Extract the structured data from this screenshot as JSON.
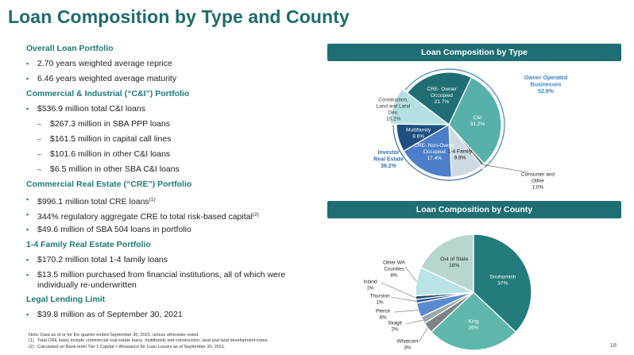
{
  "page": {
    "title": "Loan Composition by Type and County",
    "page_number": "18"
  },
  "left": {
    "overall": {
      "heading": "Overall Loan Portfolio",
      "items": [
        "2.70 years weighted average reprice",
        "6.46 years weighted average maturity"
      ]
    },
    "ci": {
      "heading": "Commercial & Industrial (“C&I”) Portfolio",
      "total": "$536.9 million total C&I loans",
      "subs": [
        "$267.3 million in SBA PPP loans",
        "$161.5 million in capital call lines",
        "$101.6 million in other C&I loans",
        "$6.5 million in other SBA C&I loans"
      ]
    },
    "cre": {
      "heading": "Commercial Real Estate (“CRE”) Portfolio",
      "item1": "$996.1 million total CRE loans",
      "item1_sup": "(1)",
      "item2": "344% regulatory aggregate CRE to total risk-based capital",
      "item2_sup": "(2)",
      "item3": "$49.6 million of SBA 504 loans in portfolio"
    },
    "family": {
      "heading": "1-4 Family Real Estate Portfolio",
      "items": [
        "$170.2 million total 1-4 family loans",
        "$13.5 million purchased from financial institutions, all of which were individually re-underwritten"
      ]
    },
    "legal": {
      "heading": "Legal Lending Limit",
      "items": [
        "$39.8 million as of September 30, 2021"
      ]
    }
  },
  "notes": {
    "main": "Note: Data as of or for the quarter ended September 30, 2021, unless otherwise noted.",
    "n1_num": "(1)",
    "n1": "Total CRE loans include commercial real estate loans, multifamily and construction, land and land development loans.",
    "n2_num": "(2)",
    "n2": "Calculated on Bank-level Tier 1 Capital + Allowance for Loan Losses as of September 30, 2021."
  },
  "chart_data": [
    {
      "type": "pie",
      "title": "Loan Composition by Type",
      "slices": [
        {
          "label": "CRE- Owner Occupied",
          "value": 21.7,
          "color": "#1f6e73"
        },
        {
          "label": "C&I",
          "value": 31.2,
          "color": "#57b0aa"
        },
        {
          "label": "Consumer and Other",
          "value": 1.0,
          "color": "#6d7b80"
        },
        {
          "label": "1-4 Family",
          "value": 9.9,
          "color": "#cdd9e3"
        },
        {
          "label": "CRE- Non-Owner Occupied",
          "value": 17.4,
          "color": "#4c7fc9"
        },
        {
          "label": "Multifamily",
          "value": 8.6,
          "color": "#1d4f80"
        },
        {
          "label": "Construction, Land and Land Dev.",
          "value": 10.2,
          "color": "#b5e0e3"
        }
      ],
      "slice_text": [
        [
          "CRE- Owner",
          "Occupied",
          "21.7%"
        ],
        [
          "C&I",
          "31.2%"
        ],
        [
          "Consumer and",
          "Other",
          "1.0%"
        ],
        [
          "1-4 Family",
          "9.9%"
        ],
        [
          "CRE- Non-Owner",
          "Occupied",
          "17.4%"
        ],
        [
          "Multifamily",
          "8.6%"
        ],
        [
          "Construction,",
          "Land and Land",
          "Dev.",
          "10.2%"
        ]
      ],
      "groups": [
        {
          "lines": [
            "Owner Operated",
            "Businesses",
            "52.9%"
          ],
          "color": "#3a86c9"
        },
        {
          "lines": [
            "Investor",
            "Real Estate",
            "36.2%"
          ],
          "color": "#3a6fb0"
        }
      ]
    },
    {
      "type": "pie",
      "title": "Loan Composition by County",
      "slices": [
        {
          "label": "Snohomish",
          "value": 37,
          "color": "#237b7b"
        },
        {
          "label": "King",
          "value": 26,
          "color": "#5fb7ac"
        },
        {
          "label": "Whatcom",
          "value": 3,
          "color": "#7c8488"
        },
        {
          "label": "Skagit",
          "value": 2,
          "color": "#9ba7ad"
        },
        {
          "label": "Pierce",
          "value": 4,
          "color": "#5a8ad1"
        },
        {
          "label": "Thurston",
          "value": 1,
          "color": "#2d5c95"
        },
        {
          "label": "Island",
          "value": 1,
          "color": "#1d4a6b"
        },
        {
          "label": "Other WA Counties",
          "value": 8,
          "color": "#b9e3e6"
        },
        {
          "label": "Out of State",
          "value": 18,
          "color": "#b7d6cf"
        }
      ],
      "slice_text": [
        [
          "Snohomish",
          "37%"
        ],
        [
          "King",
          "26%"
        ],
        [
          "Whatcom",
          "3%"
        ],
        [
          "Skagit",
          "2%"
        ],
        [
          "Pierce",
          "4%"
        ],
        [
          "Thurston",
          "1%"
        ],
        [
          "Island",
          "1%"
        ],
        [
          "Other WA",
          "Counties",
          "8%"
        ],
        [
          "Out of State",
          "18%"
        ]
      ]
    }
  ]
}
